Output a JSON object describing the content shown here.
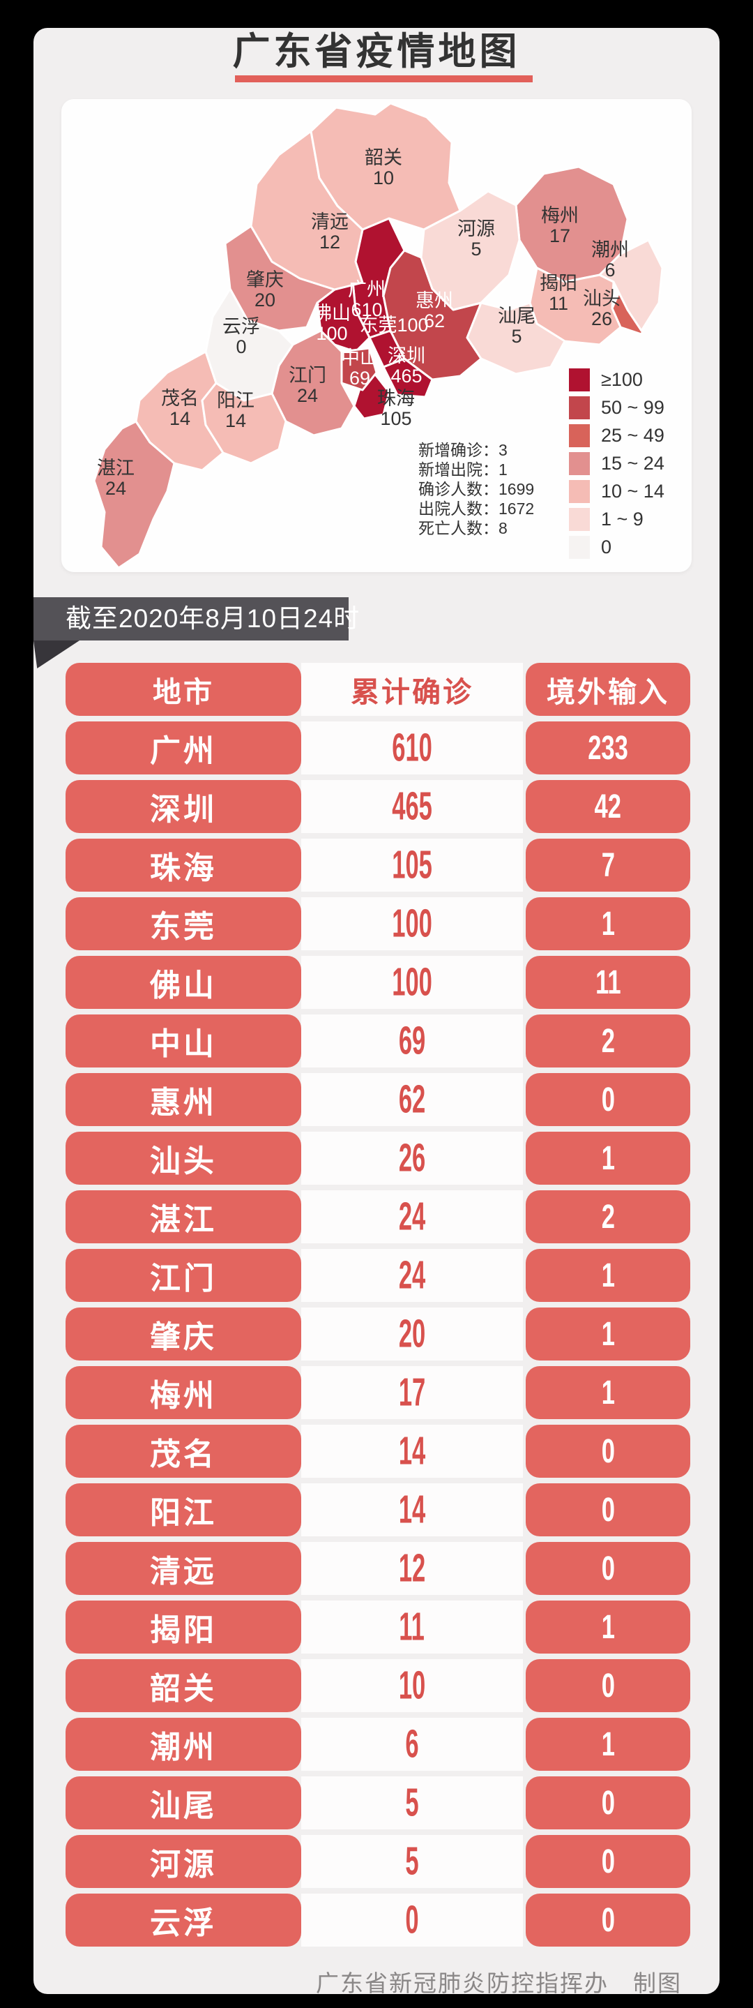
{
  "page": {
    "title": "广东省疫情地图",
    "date_ribbon": "截至2020年8月10日24时",
    "footer": "广东省新冠肺炎防控指挥办　制图"
  },
  "colors": {
    "accent_red": "#e3655f",
    "number_red": "#d8514d",
    "title_underline": "#e2605a",
    "ribbon_gray": "#545257",
    "ribbon_fold": "#37353a",
    "page_background": "#f1efef",
    "card_white": "#fefefe",
    "footer_gray": "#8a8787"
  },
  "chart_data": {
    "type": "table",
    "title": "广东省疫情地图",
    "as_of": "截至2020年8月10日24时",
    "columns": [
      "地市",
      "累计确诊",
      "境外输入"
    ],
    "legend": [
      {
        "label": "≥100",
        "color": "#b01230"
      },
      {
        "label": "50 ~ 99",
        "color": "#c2464c"
      },
      {
        "label": "25 ~ 49",
        "color": "#d8635a"
      },
      {
        "label": "15 ~ 24",
        "color": "#e2908f"
      },
      {
        "label": "10 ~ 14",
        "color": "#f5bcb5"
      },
      {
        "label": "1 ~ 9",
        "color": "#f9dad6"
      },
      {
        "label": "0",
        "color": "#f6f3f2"
      }
    ],
    "summary": [
      {
        "label": "新增确诊",
        "value": 3
      },
      {
        "label": "新增出院",
        "value": 1
      },
      {
        "label": "确诊人数",
        "value": 1699
      },
      {
        "label": "出院人数",
        "value": 1672
      },
      {
        "label": "死亡人数",
        "value": 8
      }
    ],
    "regions": [
      {
        "name": "广州",
        "confirmed": 610,
        "imported": 233,
        "level": 0
      },
      {
        "name": "深圳",
        "confirmed": 465,
        "imported": 42,
        "level": 0
      },
      {
        "name": "珠海",
        "confirmed": 105,
        "imported": 7,
        "level": 0
      },
      {
        "name": "东莞",
        "confirmed": 100,
        "imported": 1,
        "level": 0
      },
      {
        "name": "佛山",
        "confirmed": 100,
        "imported": 11,
        "level": 0
      },
      {
        "name": "中山",
        "confirmed": 69,
        "imported": 2,
        "level": 1
      },
      {
        "name": "惠州",
        "confirmed": 62,
        "imported": 0,
        "level": 1
      },
      {
        "name": "汕头",
        "confirmed": 26,
        "imported": 1,
        "level": 2
      },
      {
        "name": "湛江",
        "confirmed": 24,
        "imported": 2,
        "level": 3
      },
      {
        "name": "江门",
        "confirmed": 24,
        "imported": 1,
        "level": 3
      },
      {
        "name": "肇庆",
        "confirmed": 20,
        "imported": 1,
        "level": 3
      },
      {
        "name": "梅州",
        "confirmed": 17,
        "imported": 1,
        "level": 3
      },
      {
        "name": "茂名",
        "confirmed": 14,
        "imported": 0,
        "level": 4
      },
      {
        "name": "阳江",
        "confirmed": 14,
        "imported": 0,
        "level": 4
      },
      {
        "name": "清远",
        "confirmed": 12,
        "imported": 0,
        "level": 4
      },
      {
        "name": "揭阳",
        "confirmed": 11,
        "imported": 1,
        "level": 4
      },
      {
        "name": "韶关",
        "confirmed": 10,
        "imported": 0,
        "level": 4
      },
      {
        "name": "潮州",
        "confirmed": 6,
        "imported": 1,
        "level": 5
      },
      {
        "name": "汕尾",
        "confirmed": 5,
        "imported": 0,
        "level": 5
      },
      {
        "name": "河源",
        "confirmed": 5,
        "imported": 0,
        "level": 5
      },
      {
        "name": "云浮",
        "confirmed": 0,
        "imported": 0,
        "level": 6
      }
    ]
  }
}
